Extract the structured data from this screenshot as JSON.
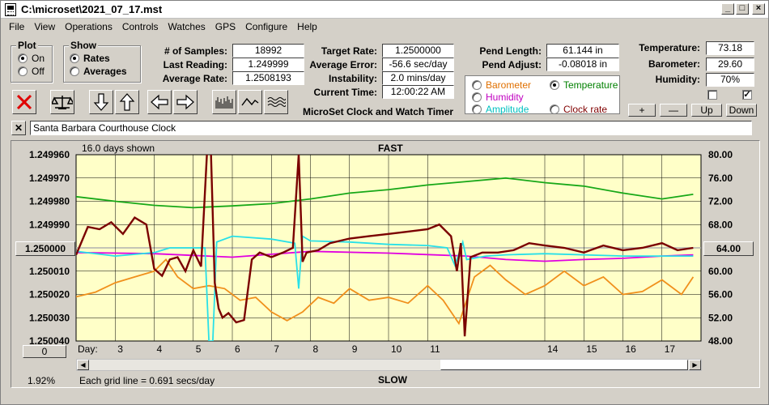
{
  "window": {
    "title": "C:\\microset\\2021_07_17.mst"
  },
  "menu": [
    "File",
    "View",
    "Operations",
    "Controls",
    "Watches",
    "GPS",
    "Configure",
    "Help"
  ],
  "plot_group": {
    "title": "Plot",
    "on": "On",
    "off": "Off",
    "selected": "On"
  },
  "show_group": {
    "title": "Show",
    "rates": "Rates",
    "averages": "Averages",
    "selected": "Rates"
  },
  "stats": {
    "samples_label": "# of Samples:",
    "samples": "18992",
    "last_label": "Last Reading:",
    "last": "1.249999",
    "avg_label": "Average Rate:",
    "avg": "1.2508193",
    "target_label": "Target Rate:",
    "target": "1.2500000",
    "avgerr_label": "Average Error:",
    "avgerr": "-56.6 sec/day",
    "instab_label": "Instability:",
    "instab": "2.0 mins/day",
    "time_label": "Current Time:",
    "time": "12:00:22 AM",
    "pendlen_label": "Pend Length:",
    "pendlen": "61.144 in",
    "pendadj_label": "Pend Adjust:",
    "pendadj": "-0.08018 in",
    "temp_label": "Temperature:",
    "temp": "73.18",
    "baro_label": "Barometer:",
    "baro": "29.60",
    "hum_label": "Humidity:",
    "hum": "70%"
  },
  "app_caption": "MicroSet Clock and Watch Timer",
  "plot_options": {
    "barometer": "Barometer",
    "temperature": "Temperature",
    "humidity": "Humidity",
    "amplitude": "Amplitude",
    "clock_rate": "Clock rate",
    "selected": "Temperature"
  },
  "adjust_buttons": {
    "plus": "+",
    "minus": "—",
    "up": "Up",
    "down": "Down"
  },
  "checkboxes": {
    "left_checked": false,
    "right_checked": true
  },
  "clock_name": "Santa Barbara Courthouse Clock",
  "clear_name_glyph": "✕",
  "graph": {
    "days_shown": "16.0 days shown",
    "fast_label": "FAST",
    "slow_label": "SLOW",
    "grid_note": "Each grid line = 0.691 secs/day",
    "day_label": "Day:",
    "percent": "1.92%",
    "left_button": "1.250000",
    "right_button": "64.00",
    "bottom_button": "0"
  },
  "colors": {
    "plot_bg": "#ffffc8",
    "rate": "#7a0000",
    "temperature": "#18a818",
    "humidity": "#e000e0",
    "amplitude": "#28e0e8",
    "barometer": "#f0901c",
    "barometer_label": "#e07000",
    "temperature_label": "#008000",
    "humidity_label": "#c000c0",
    "amplitude_label": "#00c0c0",
    "clock_rate_label": "#800000",
    "center_line": "#b0b0b0"
  },
  "chart_data": {
    "type": "line",
    "title": "",
    "xlabel": "Day:",
    "x_ticks": [
      "3",
      "4",
      "5",
      "6",
      "7",
      "8",
      "9",
      "10",
      "11",
      "14",
      "15",
      "16",
      "17"
    ],
    "x_tick_days": [
      3,
      4,
      5,
      6,
      7,
      8,
      9,
      10,
      11,
      14,
      15,
      16,
      17
    ],
    "xlim": [
      2.0,
      18.0
    ],
    "y_left_ticks": [
      "1.249960",
      "1.249970",
      "1.249980",
      "1.249990",
      "1.250000",
      "1.250010",
      "1.250020",
      "1.250030",
      "1.250040"
    ],
    "y_left_lim": [
      1.24996,
      1.25004
    ],
    "y_right_ticks": [
      "80.00",
      "76.00",
      "72.00",
      "68.00",
      "64.00",
      "60.00",
      "56.00",
      "52.00",
      "48.00"
    ],
    "y_right_lim": [
      80.0,
      48.0
    ],
    "grid": true,
    "series": [
      {
        "name": "Clock rate",
        "color": "#7a0000",
        "x": [
          2.0,
          2.3,
          2.6,
          2.9,
          3.2,
          3.5,
          3.8,
          4.0,
          4.2,
          4.4,
          4.6,
          4.8,
          5.0,
          5.2,
          5.35,
          5.45,
          5.55,
          5.65,
          5.75,
          5.9,
          6.1,
          6.3,
          6.5,
          6.7,
          7.0,
          7.3,
          7.55,
          7.7,
          7.8,
          7.9,
          8.2,
          8.5,
          9.0,
          9.5,
          10.0,
          10.5,
          11.0,
          11.3,
          11.6,
          11.75,
          11.85,
          11.95,
          12.1,
          12.4,
          12.8,
          13.2,
          13.6,
          14.0,
          14.5,
          15.0,
          15.5,
          16.0,
          16.5,
          17.0,
          17.4,
          17.8
        ],
        "y": [
          1.250003,
          1.249991,
          1.249992,
          1.249989,
          1.249994,
          1.249987,
          1.24999,
          1.250009,
          1.250012,
          1.250005,
          1.250004,
          1.25001,
          1.250001,
          1.250008,
          1.24996,
          1.249958,
          1.250015,
          1.250026,
          1.25003,
          1.250028,
          1.250032,
          1.250031,
          1.250005,
          1.250002,
          1.250004,
          1.250002,
          1.25,
          1.24996,
          1.250006,
          1.250002,
          1.250001,
          1.249998,
          1.249996,
          1.249995,
          1.249994,
          1.249993,
          1.249992,
          1.24999,
          1.249995,
          1.25001,
          1.249998,
          1.250038,
          1.250004,
          1.250002,
          1.250002,
          1.250001,
          1.249998,
          1.249999,
          1.25,
          1.250002,
          1.249999,
          1.250001,
          1.25,
          1.249998,
          1.250001,
          1.25
        ]
      },
      {
        "name": "Temperature",
        "color": "#18a818",
        "x": [
          2.0,
          3.0,
          4.0,
          5.0,
          6.0,
          7.0,
          8.0,
          9.0,
          10.0,
          11.0,
          12.0,
          13.0,
          14.0,
          15.0,
          16.0,
          17.0,
          17.8
        ],
        "y": [
          72.8,
          72.0,
          71.3,
          70.9,
          71.2,
          71.6,
          72.4,
          73.4,
          74.0,
          74.8,
          75.4,
          76.0,
          75.2,
          74.6,
          73.4,
          72.4,
          73.2
        ]
      },
      {
        "name": "Humidity",
        "color": "#e000e0",
        "x": [
          2.0,
          4.0,
          6.0,
          7.0,
          8.0,
          10.0,
          12.0,
          13.0,
          14.0,
          15.0,
          16.0,
          17.0,
          17.8
        ],
        "y": [
          63.2,
          63.0,
          62.4,
          62.9,
          63.4,
          63.1,
          62.6,
          62.0,
          61.7,
          62.0,
          62.2,
          62.6,
          62.8
        ]
      },
      {
        "name": "Amplitude",
        "color": "#28e0e8",
        "x": [
          2.0,
          3.0,
          4.0,
          4.4,
          5.0,
          5.3,
          5.4,
          5.5,
          5.6,
          6.0,
          7.0,
          7.6,
          7.7,
          7.8,
          8.0,
          9.0,
          10.0,
          11.0,
          11.5,
          11.7,
          11.9,
          12.0,
          12.5,
          13.0,
          14.0,
          16.0,
          17.8
        ],
        "y": [
          63.4,
          62.6,
          63.2,
          64.0,
          64.0,
          64.0,
          48.0,
          48.0,
          65.0,
          66.0,
          65.5,
          64.8,
          57.0,
          66.0,
          65.2,
          65.0,
          64.6,
          64.4,
          64.0,
          61.0,
          65.0,
          62.0,
          62.6,
          62.8,
          63.0,
          62.6,
          62.6
        ]
      },
      {
        "name": "Barometer",
        "color": "#f0901c",
        "x": [
          2.0,
          2.5,
          3.0,
          3.5,
          4.0,
          4.3,
          4.6,
          5.0,
          5.4,
          5.8,
          6.2,
          6.6,
          7.0,
          7.4,
          7.8,
          8.2,
          8.6,
          9.0,
          9.5,
          10.0,
          10.5,
          11.0,
          11.4,
          11.8,
          12.2,
          12.6,
          13.0,
          13.5,
          14.0,
          14.5,
          15.0,
          15.5,
          16.0,
          16.5,
          17.0,
          17.5,
          17.8
        ],
        "y": [
          55.6,
          56.4,
          58.0,
          59.0,
          60.0,
          62.0,
          59.0,
          57.0,
          57.5,
          57.0,
          55.0,
          55.5,
          53.0,
          51.5,
          53.0,
          55.5,
          54.5,
          57.0,
          55.0,
          55.5,
          54.5,
          57.5,
          55.0,
          51.0,
          59.0,
          61.0,
          58.5,
          56.0,
          57.5,
          60.0,
          57.5,
          59.0,
          56.0,
          56.5,
          58.5,
          56.0,
          59.0
        ]
      }
    ]
  }
}
